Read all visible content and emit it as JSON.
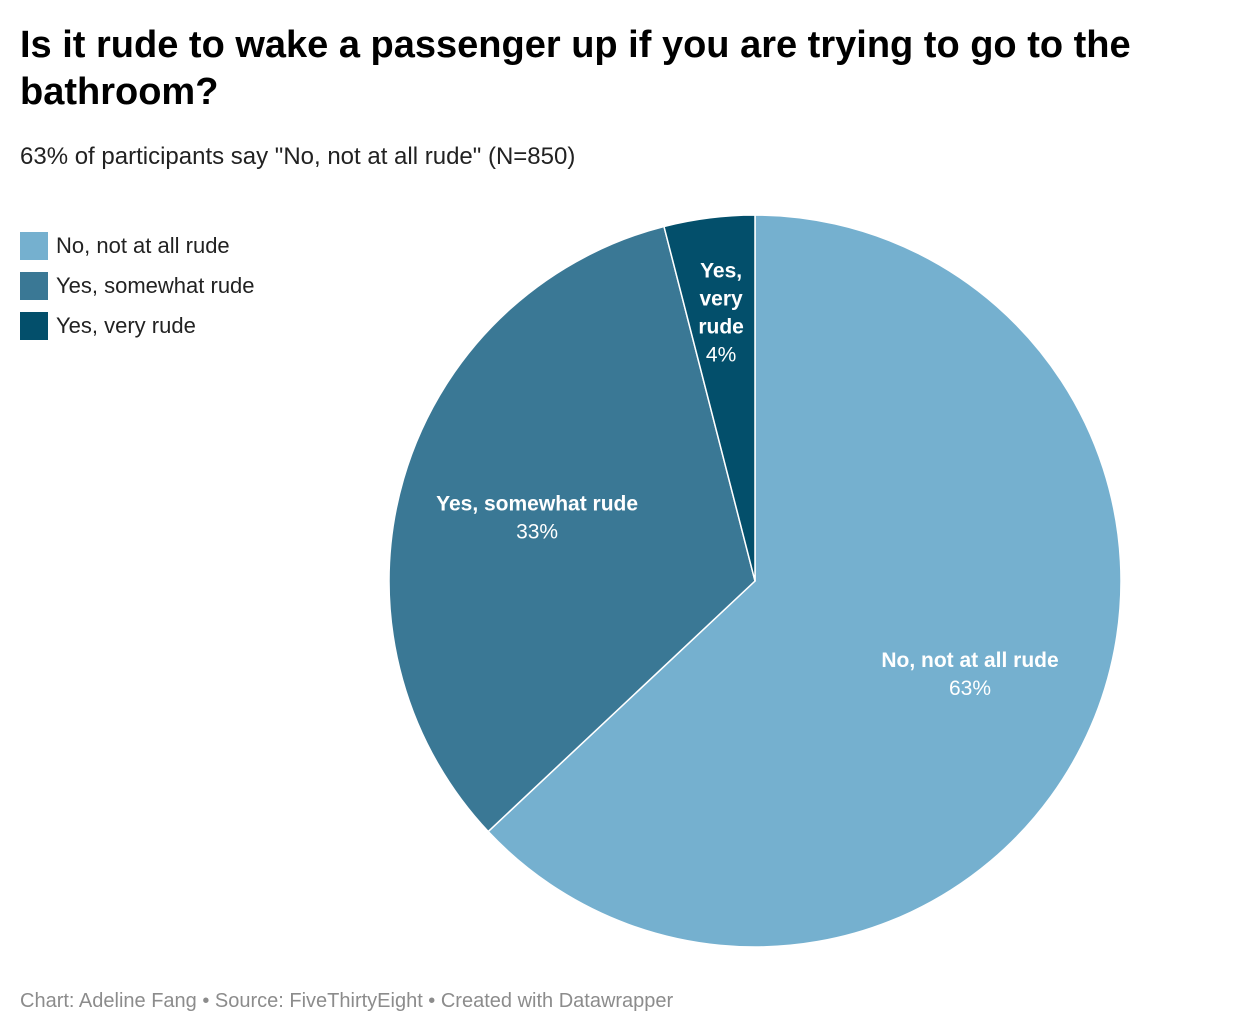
{
  "title": "Is it rude to wake a passenger up if you are trying to go to the bathroom?",
  "subtitle": "63% of participants say \"No, not at all rude\" (N=850)",
  "footer": "Chart: Adeline Fang • Source: FiveThirtyEight • Created with Datawrapper",
  "legend": [
    {
      "label": "No, not at all rude",
      "color": "#75b0cf"
    },
    {
      "label": "Yes, somewhat rude",
      "color": "#3a7895"
    },
    {
      "label": "Yes, very rude",
      "color": "#034f6b"
    }
  ],
  "chart_data": {
    "type": "pie",
    "title": "Is it rude to wake a passenger up if you are trying to go to the bathroom?",
    "subtitle": "63% of participants say \"No, not at all rude\" (N=850)",
    "legend_position": "top-left",
    "slice_order": "clockwise from top",
    "slices": [
      {
        "label": "No, not at all rude",
        "label_lines": [
          "No, not at all rude"
        ],
        "value": 63,
        "display": "63%",
        "color": "#75b0cf"
      },
      {
        "label": "Yes, somewhat rude",
        "label_lines": [
          "Yes, somewhat rude"
        ],
        "value": 33,
        "display": "33%",
        "color": "#3a7895"
      },
      {
        "label": "Yes, very rude",
        "label_lines": [
          "Yes,",
          "very",
          "rude"
        ],
        "value": 4,
        "display": "4%",
        "color": "#034f6b"
      }
    ]
  }
}
